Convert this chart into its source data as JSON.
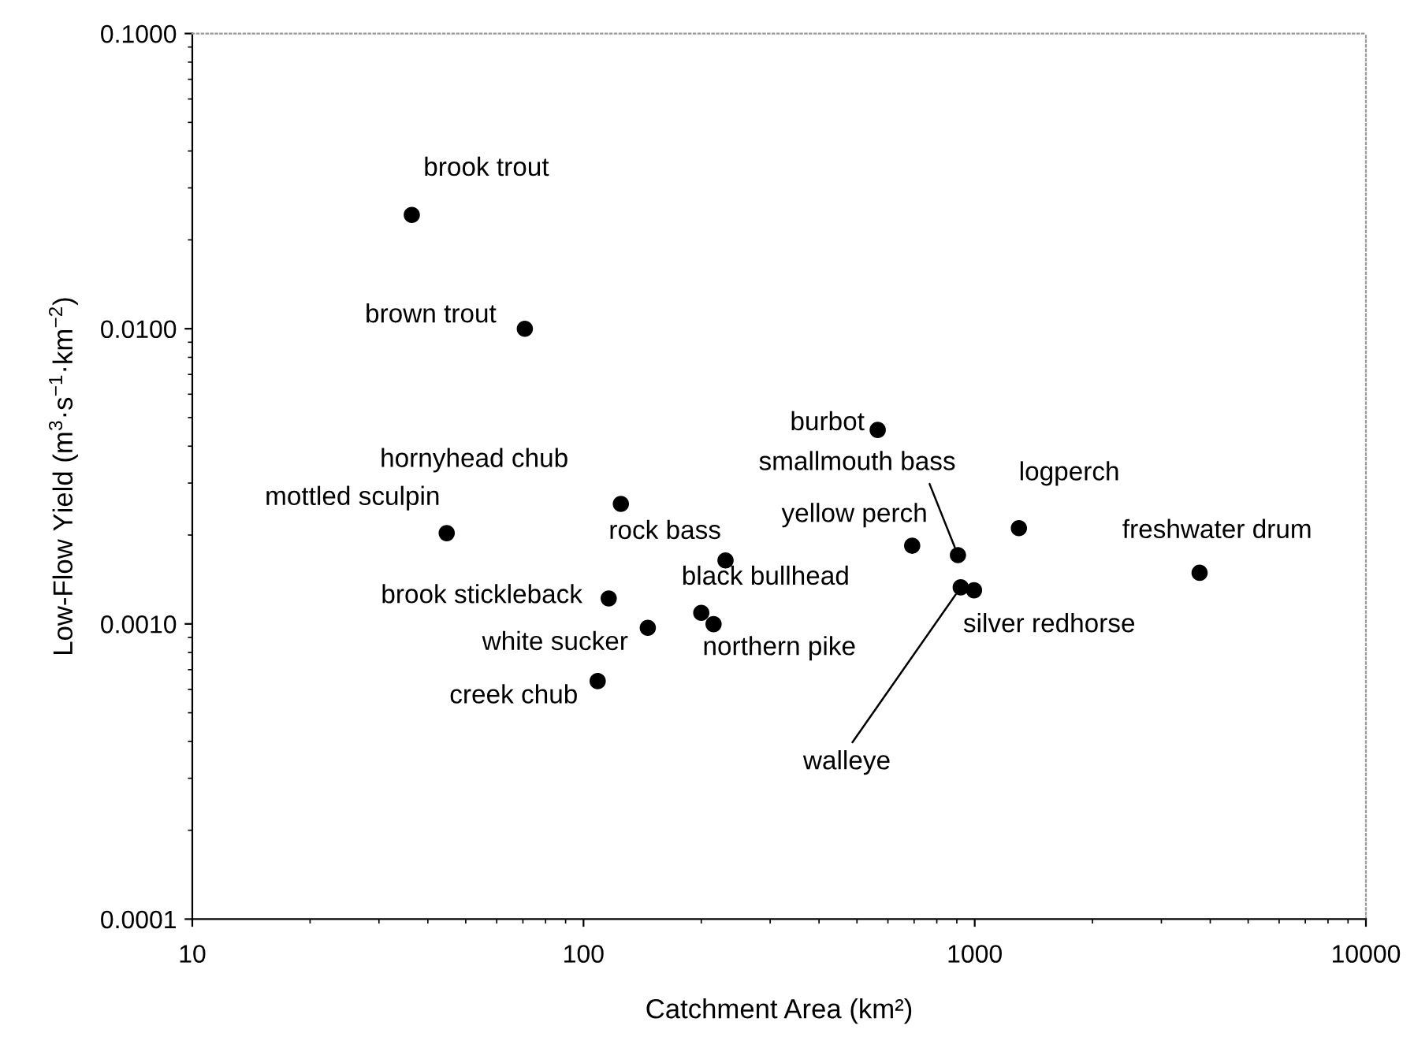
{
  "chart_data": {
    "type": "scatter",
    "xlabel": "Catchment Area (km²)",
    "ylabel": "Low-Flow Yield (m$^{3}$·s$^{−1}$·km$^{−2}$)",
    "log": "xy",
    "xlim": [
      10,
      10000
    ],
    "ylim": [
      0.0001,
      0.1
    ],
    "xticks": [
      10,
      100,
      1000,
      10000
    ],
    "yticks": [
      {
        "value": 0.0001,
        "label": "0.0001"
      },
      {
        "value": 0.001,
        "label": "0.0010"
      },
      {
        "value": 0.01,
        "label": "0.0100"
      },
      {
        "value": 0.1,
        "label": "0.1000"
      }
    ],
    "grid": false,
    "marker": "circle",
    "series": [
      {
        "color": "#000000",
        "x": [
          36.4,
          70.8,
          44.7,
          124.6,
          230.7,
          116,
          146,
          200,
          215,
          108.7,
          565,
          906,
          692,
          1297,
          3757,
          996,
          921
        ],
        "values": [
          0.0243,
          0.01,
          0.00203,
          0.00255,
          0.00164,
          0.00122,
          0.00097,
          0.00109,
          0.000998,
          0.00064,
          0.00454,
          0.00171,
          0.00184,
          0.00211,
          0.00149,
          0.0013,
          0.00133
        ]
      }
    ],
    "annotations": [
      {
        "text": "brook trout",
        "x": 36.4,
        "y": 0.0243
      },
      {
        "text": "brown trout",
        "x": 70.8,
        "y": 0.01
      },
      {
        "text": "mottled sculpin",
        "x": 44.7,
        "y": 0.00203
      },
      {
        "text": "hornyhead chub",
        "x": 124.6,
        "y": 0.00255
      },
      {
        "text": "rock bass",
        "x": 230.7,
        "y": 0.00164
      },
      {
        "text": "brook stickleback",
        "x": 116,
        "y": 0.00122
      },
      {
        "text": "white sucker",
        "x": 146,
        "y": 0.00097
      },
      {
        "text": "black bullhead",
        "x": 200,
        "y": 0.00109
      },
      {
        "text": "northern pike",
        "x": 215,
        "y": 0.000998
      },
      {
        "text": "creek chub",
        "x": 108.7,
        "y": 0.00064
      },
      {
        "text": "burbot",
        "x": 565,
        "y": 0.00454
      },
      {
        "text": "smallmouth bass",
        "x": 906,
        "y": 0.00171
      },
      {
        "text": "yellow perch",
        "x": 692,
        "y": 0.00184
      },
      {
        "text": "logperch",
        "x": 1297,
        "y": 0.00211
      },
      {
        "text": "freshwater drum",
        "x": 3757,
        "y": 0.00149
      },
      {
        "text": "silver redhorse",
        "x": 996,
        "y": 0.0013
      },
      {
        "text": "walleye",
        "x": 921,
        "y": 0.00133
      }
    ]
  }
}
